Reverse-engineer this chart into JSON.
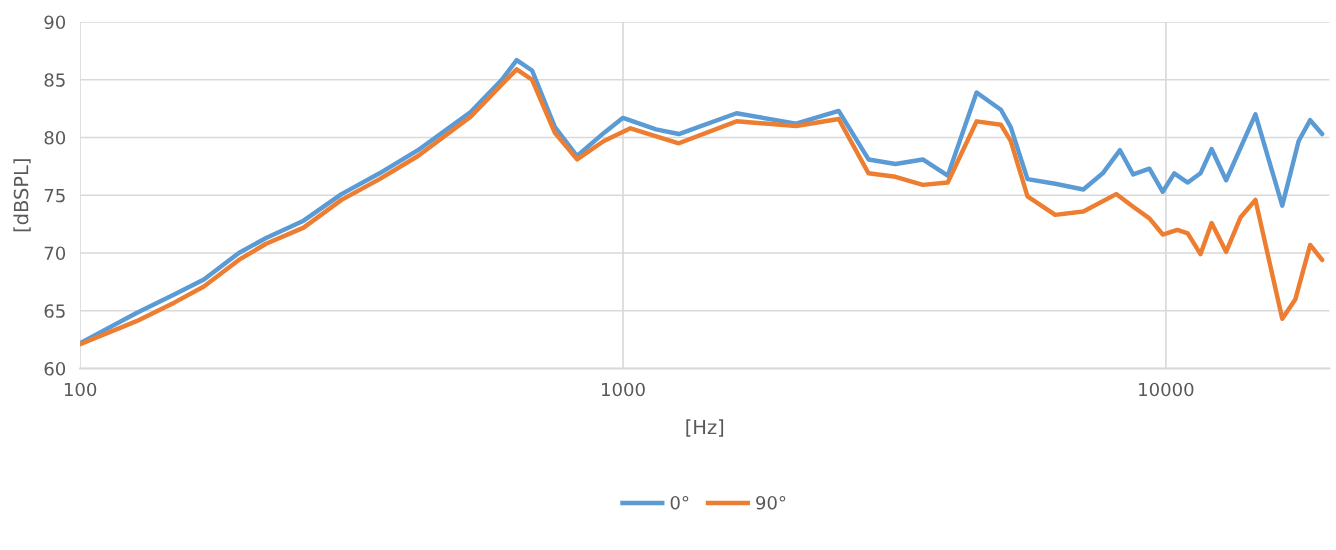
{
  "chart_data": {
    "type": "line",
    "xlabel": "[Hz]",
    "ylabel": "[dBSPL]",
    "log": "x",
    "grid": true,
    "legend": "bottom",
    "marker": "none",
    "line_style": "solid",
    "xlim": [
      100,
      20000
    ],
    "xticks": [
      100,
      1000,
      10000
    ],
    "ylim": [
      60,
      90
    ],
    "yticks": [
      60,
      65,
      70,
      75,
      80,
      85,
      90
    ],
    "series": [
      {
        "name": "0°",
        "color": "#5b9bd5",
        "x": [
          100,
          127,
          149,
          169,
          196,
          220,
          258,
          303,
          356,
          419,
          524,
          598,
          637,
          680,
          749,
          823,
          922,
          1000,
          1150,
          1267,
          1618,
          2083,
          2496,
          2833,
          3176,
          3566,
          3964,
          4480,
          4967,
          5178,
          5560,
          6253,
          7046,
          7649,
          8230,
          8705,
          9325,
          9869,
          10360,
          10970,
          11580,
          12140,
          12910,
          14620,
          16380,
          17560,
          18440,
          19400
        ],
        "values": [
          62.2,
          64.8,
          66.4,
          67.7,
          70.0,
          71.3,
          72.8,
          75.1,
          76.9,
          78.9,
          82.2,
          85.0,
          86.7,
          85.8,
          80.9,
          78.4,
          80.4,
          81.7,
          80.7,
          80.3,
          82.1,
          81.2,
          82.3,
          78.1,
          77.7,
          78.1,
          76.7,
          83.9,
          82.4,
          80.9,
          76.4,
          76.0,
          75.5,
          76.9,
          78.9,
          76.8,
          77.3,
          75.3,
          76.9,
          76.1,
          76.9,
          79.0,
          76.3,
          82.0,
          74.1,
          79.7,
          81.5,
          80.3
        ]
      },
      {
        "name": "90°",
        "color": "#ed7d31",
        "x": [
          100,
          127,
          149,
          169,
          196,
          220,
          258,
          303,
          356,
          419,
          524,
          598,
          637,
          680,
          749,
          823,
          922,
          1032,
          1267,
          1618,
          2083,
          2496,
          2833,
          3176,
          3566,
          3964,
          4480,
          4967,
          5178,
          5560,
          6253,
          7046,
          8100,
          8705,
          9325,
          9869,
          10500,
          10970,
          11580,
          12140,
          12910,
          13730,
          14620,
          16380,
          17320,
          18440,
          19400
        ],
        "values": [
          62.1,
          64.1,
          65.7,
          67.1,
          69.4,
          70.8,
          72.2,
          74.6,
          76.4,
          78.4,
          81.8,
          84.6,
          85.9,
          85.0,
          80.4,
          78.1,
          79.7,
          80.8,
          79.5,
          81.4,
          81.0,
          81.6,
          76.9,
          76.6,
          75.9,
          76.1,
          81.4,
          81.1,
          79.7,
          74.9,
          73.3,
          73.6,
          75.1,
          74.0,
          73.0,
          71.6,
          72.0,
          71.7,
          69.9,
          72.6,
          70.1,
          73.1,
          74.6,
          64.3,
          66.0,
          70.7,
          69.4
        ]
      }
    ]
  }
}
